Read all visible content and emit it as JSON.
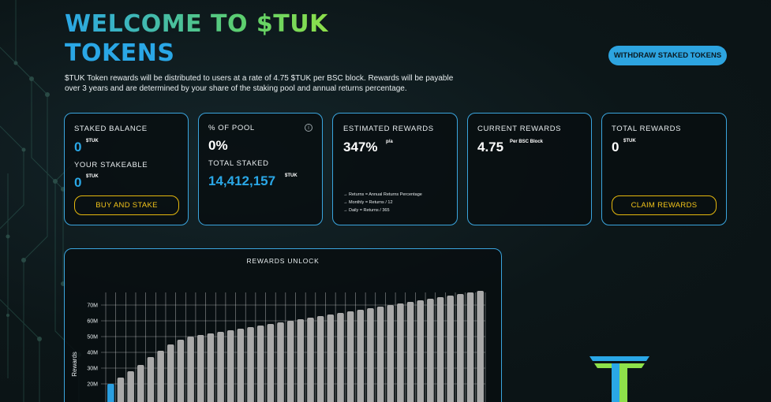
{
  "header": {
    "title_line1": "WELCOME TO $TUK",
    "title_line2": "TOKENS",
    "intro": "$TUK Token rewards will be distributed to users at a rate of 4.75 $TUK per BSC block. Rewards will be payable over 3 years and are determined by your share of the staking pool and annual returns percentage.",
    "withdraw_label": "WITHDRAW STAKED TOKENS"
  },
  "cards": {
    "staked": {
      "label": "STAKED BALANCE",
      "value": "0",
      "unit": "$TUK",
      "stakeable_label": "YOUR STAKEABLE",
      "stakeable_value": "0",
      "stakeable_unit": "$TUK",
      "button": "BUY AND STAKE"
    },
    "pool": {
      "label": "% OF POOL",
      "value": "0%",
      "total_label": "TOTAL STAKED",
      "total_value": "14,412,157",
      "total_unit": "$TUK",
      "info_glyph": "i"
    },
    "estimated": {
      "label": "ESTIMATED REWARDS",
      "value": "347%",
      "unit": "p/a",
      "notes": [
        "→ Returns = Annual Returns Percentage",
        "→ Monthly = Returns / 12",
        "→ Daily = Returns / 365"
      ]
    },
    "current": {
      "label": "CURRENT REWARDS",
      "value": "4.75",
      "unit": "Per BSC Block"
    },
    "total": {
      "label": "TOTAL REWARDS",
      "value": "0",
      "unit": "$TUK",
      "button": "CLAIM REWARDS"
    }
  },
  "chart": {
    "title": "REWARDS UNLOCK",
    "ylabel": "Rewards"
  },
  "chart_data": {
    "type": "bar",
    "title": "REWARDS UNLOCK",
    "ylabel": "Rewards",
    "xlabel": "",
    "y_tick_labels": [
      "20M",
      "30M",
      "40M",
      "50M",
      "60M",
      "70M"
    ],
    "ylim": [
      0,
      80
    ],
    "unit": "M",
    "values": [
      20,
      24,
      28,
      32,
      37,
      41,
      45,
      48,
      50,
      51,
      52,
      53,
      54,
      55,
      56,
      57,
      58,
      59,
      60,
      61,
      62,
      63,
      64,
      65,
      66,
      67,
      68,
      69,
      70,
      71,
      72,
      73,
      74,
      75,
      76,
      77,
      78,
      79
    ],
    "highlight_index": 0,
    "colors": {
      "bar": "#a9a9a9",
      "highlight": "#2a9fe0",
      "grid": "#ffffff"
    }
  },
  "colors": {
    "accent_blue": "#2aa7e6",
    "accent_green": "#8ee04a",
    "button_yellow": "#e5b80e",
    "card_border": "#3aa5de"
  }
}
